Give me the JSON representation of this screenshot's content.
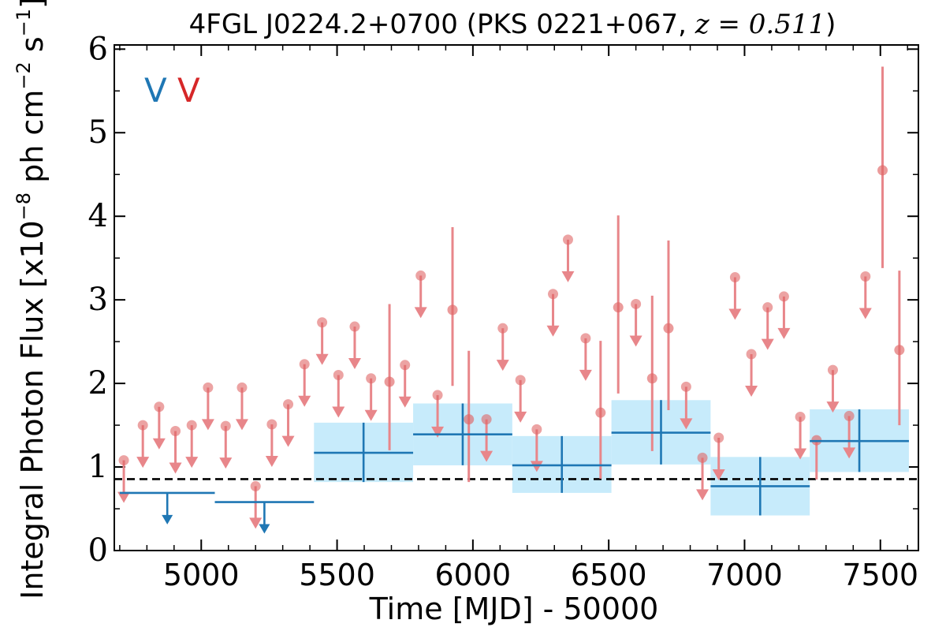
{
  "chart_data": {
    "type": "scatter",
    "title": "4FGL J0224.2+0700 (PKS 0221+067, ",
    "title_math": "z = 0.511",
    "title_close": ")",
    "xlabel": "Time [MJD] - 50000",
    "ylabel": "Integral Photon Flux [x10",
    "ylabel_exp": "−8",
    "ylabel_mid": " ph cm",
    "ylabel_exp2": "−2",
    "ylabel_mid2": " s",
    "ylabel_exp3": "−1",
    "ylabel_end": "]",
    "xlim": [
      4680,
      7640
    ],
    "ylim": [
      0,
      6.05
    ],
    "xticks": [
      5000,
      5500,
      6000,
      6500,
      7000,
      7500
    ],
    "xtick_labels": [
      "5000",
      "5500",
      "6000",
      "6500",
      "7000",
      "7500"
    ],
    "yticks": [
      0,
      1,
      2,
      3,
      4,
      5,
      6
    ],
    "ytick_labels": [
      "0",
      "1",
      "2",
      "3",
      "4",
      "5",
      "6"
    ],
    "legend": [
      {
        "label": "V",
        "color": "#1f77b4"
      },
      {
        "label": "V",
        "color": "#d62728"
      }
    ],
    "legend_position": "top-left",
    "baseline": {
      "y": 0.855,
      "style": "dashed",
      "color": "#000000"
    },
    "colors": {
      "red_points": "#e8868a",
      "red_fill": "#e06666",
      "blue": "#1f77b4",
      "band": "#c7ebfb"
    },
    "red_series": {
      "name": "",
      "detections": [
        {
          "x": 5693,
          "y": 2.02,
          "lo": 1.2,
          "hi": 2.95
        },
        {
          "x": 5925,
          "y": 2.88,
          "lo": 1.97,
          "hi": 3.87
        },
        {
          "x": 5985,
          "y": 1.57,
          "lo": 0.82,
          "hi": 2.39
        },
        {
          "x": 6470,
          "y": 1.65,
          "lo": 0.86,
          "hi": 2.51
        },
        {
          "x": 6535,
          "y": 2.91,
          "lo": 1.88,
          "hi": 4.01
        },
        {
          "x": 6660,
          "y": 2.06,
          "lo": 1.19,
          "hi": 3.05
        },
        {
          "x": 6720,
          "y": 2.66,
          "lo": 1.68,
          "hi": 3.71
        },
        {
          "x": 7265,
          "y": 1.32,
          "lo": 0.85,
          "hi": 1.32
        },
        {
          "x": 7508,
          "y": 4.55,
          "lo": 3.38,
          "hi": 5.79
        },
        {
          "x": 7570,
          "y": 2.4,
          "lo": 1.5,
          "hi": 3.35
        }
      ],
      "upper_limits": [
        {
          "x": 4715,
          "y": 1.08
        },
        {
          "x": 4785,
          "y": 1.5
        },
        {
          "x": 4845,
          "y": 1.72
        },
        {
          "x": 4905,
          "y": 1.43
        },
        {
          "x": 4965,
          "y": 1.5
        },
        {
          "x": 5025,
          "y": 1.95
        },
        {
          "x": 5090,
          "y": 1.49
        },
        {
          "x": 5150,
          "y": 1.95
        },
        {
          "x": 5200,
          "y": 0.77
        },
        {
          "x": 5260,
          "y": 1.51
        },
        {
          "x": 5320,
          "y": 1.75
        },
        {
          "x": 5380,
          "y": 2.23
        },
        {
          "x": 5445,
          "y": 2.73
        },
        {
          "x": 5505,
          "y": 2.1
        },
        {
          "x": 5565,
          "y": 2.68
        },
        {
          "x": 5625,
          "y": 2.06
        },
        {
          "x": 5750,
          "y": 2.22
        },
        {
          "x": 5808,
          "y": 3.29
        },
        {
          "x": 5870,
          "y": 1.86
        },
        {
          "x": 6050,
          "y": 1.57
        },
        {
          "x": 6110,
          "y": 2.66
        },
        {
          "x": 6175,
          "y": 2.04
        },
        {
          "x": 6235,
          "y": 1.45
        },
        {
          "x": 6295,
          "y": 3.07
        },
        {
          "x": 6350,
          "y": 3.72
        },
        {
          "x": 6415,
          "y": 2.54
        },
        {
          "x": 6600,
          "y": 2.95
        },
        {
          "x": 6785,
          "y": 1.96
        },
        {
          "x": 6845,
          "y": 1.11
        },
        {
          "x": 6905,
          "y": 1.35
        },
        {
          "x": 6965,
          "y": 3.27
        },
        {
          "x": 7025,
          "y": 2.35
        },
        {
          "x": 7085,
          "y": 2.91
        },
        {
          "x": 7145,
          "y": 3.04
        },
        {
          "x": 7205,
          "y": 1.6
        },
        {
          "x": 7325,
          "y": 2.16
        },
        {
          "x": 7385,
          "y": 1.61
        },
        {
          "x": 7445,
          "y": 3.28
        }
      ]
    },
    "blue_series": {
      "name": "",
      "bins": [
        {
          "x0": 4700,
          "x1": 5050,
          "y": 0.69,
          "upper_limit": true
        },
        {
          "x0": 5050,
          "x1": 5415,
          "y": 0.58,
          "upper_limit": true
        },
        {
          "x0": 5415,
          "x1": 5780,
          "y": 1.17,
          "lo": 0.82,
          "hi": 1.53
        },
        {
          "x0": 5780,
          "x1": 6145,
          "y": 1.39,
          "lo": 1.02,
          "hi": 1.76
        },
        {
          "x0": 6145,
          "x1": 6510,
          "y": 1.02,
          "lo": 0.69,
          "hi": 1.37
        },
        {
          "x0": 6510,
          "x1": 6875,
          "y": 1.41,
          "lo": 1.03,
          "hi": 1.8
        },
        {
          "x0": 6875,
          "x1": 7240,
          "y": 0.77,
          "lo": 0.42,
          "hi": 1.12
        },
        {
          "x0": 7240,
          "x1": 7605,
          "y": 1.31,
          "lo": 0.94,
          "hi": 1.69
        }
      ]
    }
  }
}
